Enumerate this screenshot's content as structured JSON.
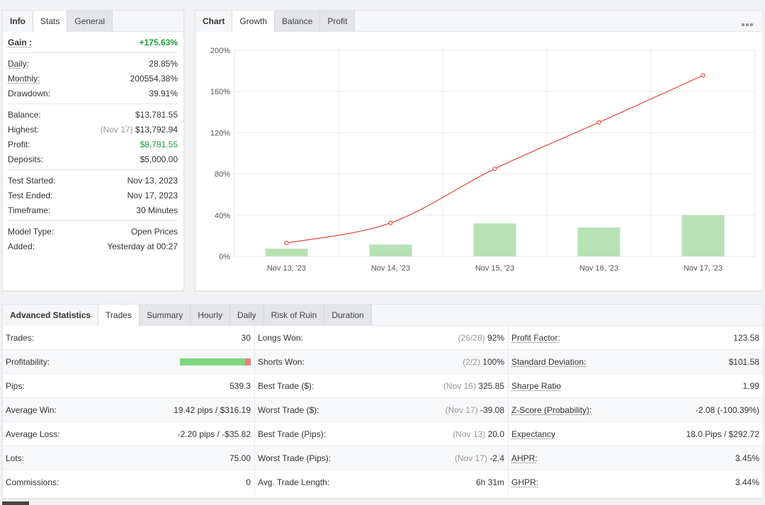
{
  "info": {
    "tabs": [
      "Info",
      "Stats",
      "General"
    ],
    "gain": {
      "label": "Gain :",
      "value": "+175.63%"
    },
    "daily": {
      "label": "Daily:",
      "value": "28.85%"
    },
    "monthly": {
      "label": "Monthly:",
      "value": "200554.38%"
    },
    "drawdown": {
      "label": "Drawdown:",
      "value": "39.91%"
    },
    "balance": {
      "label": "Balance:",
      "value": "$13,781.55"
    },
    "highest": {
      "label": "Highest:",
      "date": "(Nov 17)",
      "value": "$13,792.94"
    },
    "profit": {
      "label": "Profit:",
      "value": "$8,781.55"
    },
    "deposits": {
      "label": "Deposits:",
      "value": "$5,000.00"
    },
    "test_started": {
      "label": "Test Started:",
      "value": "Nov 13, 2023"
    },
    "test_ended": {
      "label": "Test Ended:",
      "value": "Nov 17, 2023"
    },
    "timeframe": {
      "label": "Timeframe:",
      "value": "30 Minutes"
    },
    "model_type": {
      "label": "Model Type:",
      "value": "Open Prices"
    },
    "added": {
      "label": "Added:",
      "value": "Yesterday at 00:27"
    }
  },
  "chart_panel": {
    "tabs": [
      "Chart",
      "Growth",
      "Balance",
      "Profit"
    ],
    "menu_icon": "more-horizontal-icon"
  },
  "chart_data": {
    "type": "bar",
    "categories": [
      "Nov 13, '23",
      "Nov 14, '23",
      "Nov 15, '23",
      "Nov 16, '23",
      "Nov 17, '23"
    ],
    "series": [
      {
        "type": "bar",
        "values": [
          7.5,
          11.5,
          32,
          28,
          40
        ],
        "color": "#b6e2b6"
      },
      {
        "type": "line",
        "values": [
          13,
          32.5,
          85,
          130,
          175.63
        ],
        "color": "#e74c3c"
      }
    ],
    "ylim": [
      0,
      200
    ],
    "yticks": [
      "0%",
      "40%",
      "80%",
      "120%",
      "160%",
      "200%"
    ],
    "ytick_values": [
      0,
      40,
      80,
      120,
      160,
      200
    ],
    "grid": true
  },
  "stats": {
    "tabs": [
      "Advanced Statistics",
      "Trades",
      "Summary",
      "Hourly",
      "Daily",
      "Risk of Ruin",
      "Duration"
    ],
    "col1": [
      {
        "label": "Trades:",
        "value": "30"
      },
      {
        "label": "Profitability:",
        "win_fraction": 0.92
      },
      {
        "label": "Pips:",
        "value": "539.3"
      },
      {
        "label": "Average Win:",
        "value": "19.42 pips / $316.19"
      },
      {
        "label": "Average Loss:",
        "value": "-2.20 pips / -$35.82"
      },
      {
        "label": "Lots:",
        "value": "75.00"
      },
      {
        "label": "Commissions:",
        "value": "0"
      }
    ],
    "col2": [
      {
        "label": "Longs Won:",
        "note": "(26/28)",
        "value": "92%"
      },
      {
        "label": "Shorts Won:",
        "note": "(2/2)",
        "value": "100%"
      },
      {
        "label": "Best Trade ($):",
        "note": "(Nov 16)",
        "value": "325.85"
      },
      {
        "label": "Worst Trade ($):",
        "note": "(Nov 17)",
        "value": "-39.08"
      },
      {
        "label": "Best Trade (Pips):",
        "note": "(Nov 13)",
        "value": "20.0"
      },
      {
        "label": "Worst Trade (Pips):",
        "note": "(Nov 17)",
        "value": "-2.4"
      },
      {
        "label": "Avg. Trade Length:",
        "note": "",
        "value": "6h 31m"
      }
    ],
    "col3": [
      {
        "label": "Profit Factor:",
        "value": "123.58"
      },
      {
        "label": "Standard Deviation:",
        "value": "$101.58"
      },
      {
        "label": "Sharpe Ratio",
        "value": "1.99"
      },
      {
        "label": "Z-Score (Probability):",
        "value": "-2.08 (-100.39%)"
      },
      {
        "label": "Expectancy",
        "value": "18.0 Pips / $292.72"
      },
      {
        "label": "AHPR:",
        "value": "3.45%"
      },
      {
        "label": "GHPR:",
        "value": "3.44%"
      }
    ]
  }
}
